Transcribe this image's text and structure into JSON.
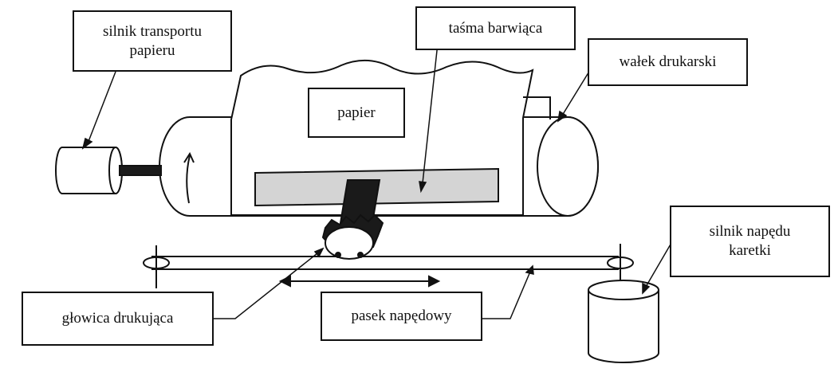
{
  "labels": {
    "paper_motor": [
      "silnik transportu",
      "papieru"
    ],
    "ribbon": "taśma barwiąca",
    "platen": "wałek drukarski",
    "paper": "papier",
    "carriage_motor": [
      "silnik napędu",
      "karetki"
    ],
    "print_head": "głowica drukująca",
    "drive_belt": "pasek napędowy"
  },
  "colors": {
    "line": "#111111",
    "ribbon_fill": "#d4d4d4",
    "head_fill": "#1a1a1a"
  }
}
